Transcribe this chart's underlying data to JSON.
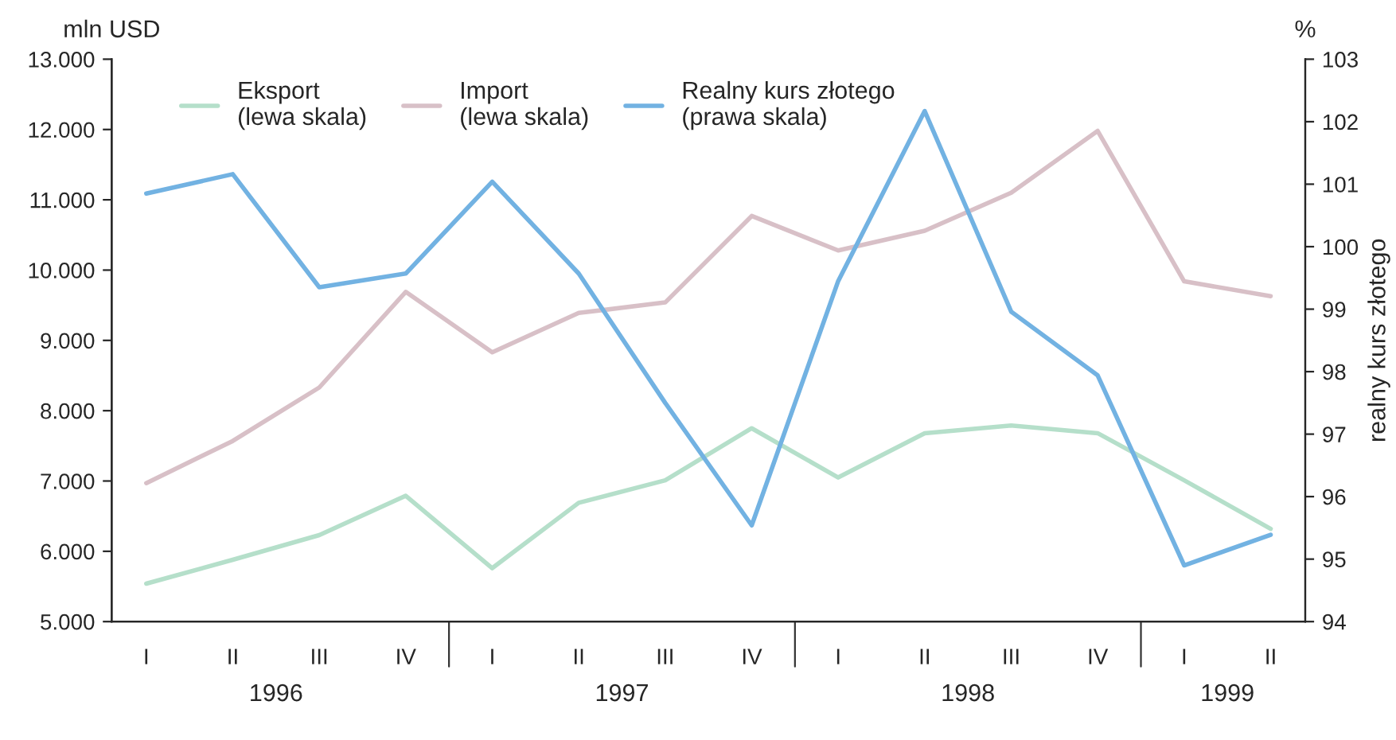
{
  "chart_data": {
    "type": "line",
    "categories": [
      "I",
      "II",
      "III",
      "IV",
      "I",
      "II",
      "III",
      "IV",
      "I",
      "II",
      "III",
      "IV",
      "I",
      "II"
    ],
    "series": [
      {
        "name": "Eksport\n(lewa skala)",
        "color": "#b5dfca",
        "values": [
          5540,
          5880,
          6230,
          6790,
          5760,
          6690,
          7010,
          7750,
          7050,
          7680,
          7790,
          7680,
          7010,
          6320
        ]
      },
      {
        "name": "Import\n(lewa skala)",
        "color": "#d8c0c7",
        "values": [
          6970,
          7570,
          8330,
          9690,
          8830,
          9390,
          9540,
          10770,
          10280,
          10560,
          11100,
          11980,
          9840,
          9630
        ]
      },
      {
        "name": "Realny kurs złotego\n(prawa skala)",
        "color": "#72b2e2",
        "axis": "y2",
        "values": [
          100.85,
          101.16,
          99.35,
          99.57,
          101.04,
          99.57,
          97.5,
          95.54,
          99.45,
          102.17,
          98.96,
          97.94,
          94.9,
          95.39
        ]
      }
    ],
    "ylabel": "mln USD",
    "y2label": "realny kurs złotego",
    "annotations": [
      "1996",
      "1997",
      "1998",
      "1999",
      "%"
    ],
    "ylim": [
      5000,
      13000
    ],
    "yticks": [
      {
        "value": 5000,
        "label": "5.000"
      },
      {
        "value": 6000,
        "label": "6.000"
      },
      {
        "value": 7000,
        "label": "7.000"
      },
      {
        "value": 8000,
        "label": "8.000"
      },
      {
        "value": 9000,
        "label": "9.000"
      },
      {
        "value": 10000,
        "label": "10.000"
      },
      {
        "value": 11000,
        "label": "11.000"
      },
      {
        "value": 12000,
        "label": "12.000"
      },
      {
        "value": 13000,
        "label": "13.000"
      }
    ],
    "y2lim": [
      94,
      103
    ],
    "y2ticks": [
      94,
      95,
      96,
      97,
      98,
      99,
      100,
      101,
      102,
      103
    ],
    "grid": false,
    "legend": "top left",
    "marker": "none",
    "line_style": "solid"
  }
}
